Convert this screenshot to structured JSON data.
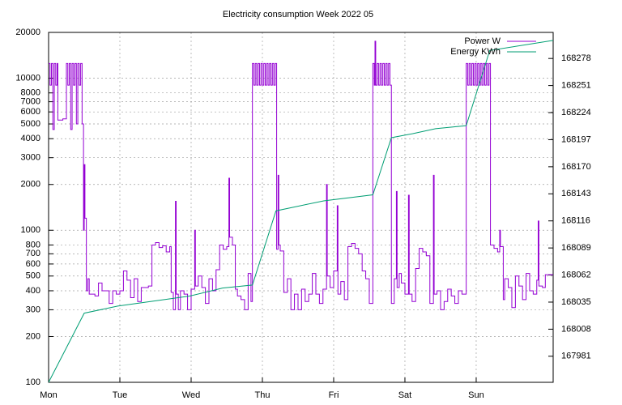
{
  "chart_data": {
    "type": "line",
    "title": "Electricity consumption Week 2022 05",
    "xlim": [
      0,
      7.08
    ],
    "xticks": [
      {
        "value": 0,
        "label": "Mon"
      },
      {
        "value": 1,
        "label": "Tue"
      },
      {
        "value": 2,
        "label": "Wed"
      },
      {
        "value": 3,
        "label": "Thu"
      },
      {
        "value": 4,
        "label": "Fri"
      },
      {
        "value": 5,
        "label": "Sat"
      },
      {
        "value": 6,
        "label": "Sun"
      }
    ],
    "ylim": [
      100,
      20000
    ],
    "log_y": true,
    "yticks": [
      100,
      200,
      300,
      400,
      500,
      600,
      700,
      800,
      1000,
      2000,
      3000,
      4000,
      5000,
      6000,
      7000,
      8000,
      10000,
      20000
    ],
    "y2lim": [
      167955,
      168304
    ],
    "y2ticks": [
      167981,
      168008,
      168035,
      168062,
      168089,
      168116,
      168143,
      168170,
      168197,
      168224,
      168251,
      168278
    ],
    "grid": true,
    "legend": "top-right",
    "series": [
      {
        "name": "Power W",
        "color": "#9400d3",
        "steps": true,
        "x": [
          0,
          0.02,
          0.04,
          0.06,
          0.08,
          0.1,
          0.12,
          0.13,
          0.2,
          0.25,
          0.27,
          0.29,
          0.31,
          0.33,
          0.35,
          0.37,
          0.39,
          0.41,
          0.43,
          0.45,
          0.47,
          0.49,
          0.5,
          0.51,
          0.53,
          0.55,
          0.57,
          0.65,
          0.7,
          0.75,
          0.85,
          0.9,
          0.95,
          1.0,
          1.05,
          1.1,
          1.15,
          1.2,
          1.25,
          1.3,
          1.4,
          1.45,
          1.5,
          1.55,
          1.6,
          1.65,
          1.7,
          1.72,
          1.75,
          1.78,
          1.79,
          1.82,
          1.85,
          1.9,
          1.95,
          2.0,
          2.05,
          2.06,
          2.1,
          2.15,
          2.2,
          2.25,
          2.3,
          2.35,
          2.4,
          2.45,
          2.5,
          2.53,
          2.54,
          2.58,
          2.62,
          2.65,
          2.7,
          2.75,
          2.8,
          2.84,
          2.86,
          2.88,
          2.9,
          2.92,
          2.94,
          2.96,
          2.98,
          3.0,
          3.02,
          3.04,
          3.06,
          3.08,
          3.1,
          3.12,
          3.14,
          3.16,
          3.18,
          3.2,
          3.22,
          3.23,
          3.25,
          3.3,
          3.35,
          3.4,
          3.45,
          3.5,
          3.55,
          3.6,
          3.65,
          3.7,
          3.75,
          3.8,
          3.85,
          3.9,
          3.91,
          3.95,
          4.0,
          4.05,
          4.06,
          4.1,
          4.15,
          4.2,
          4.25,
          4.3,
          4.35,
          4.4,
          4.45,
          4.5,
          4.55,
          4.57,
          4.58,
          4.59,
          4.61,
          4.63,
          4.65,
          4.67,
          4.69,
          4.71,
          4.73,
          4.75,
          4.77,
          4.79,
          4.81,
          4.85,
          4.88,
          4.89,
          4.92,
          4.95,
          5.0,
          5.05,
          5.06,
          5.1,
          5.15,
          5.2,
          5.25,
          5.3,
          5.35,
          5.4,
          5.41,
          5.45,
          5.5,
          5.55,
          5.6,
          5.65,
          5.7,
          5.75,
          5.8,
          5.86,
          5.88,
          5.9,
          5.92,
          5.94,
          5.96,
          5.98,
          6.0,
          6.02,
          6.04,
          6.06,
          6.08,
          6.1,
          6.12,
          6.14,
          6.16,
          6.18,
          6.2,
          6.25,
          6.3,
          6.33,
          6.34,
          6.38,
          6.4,
          6.45,
          6.5,
          6.55,
          6.6,
          6.65,
          6.7,
          6.75,
          6.8,
          6.85,
          6.87,
          6.88,
          6.93,
          6.97
        ],
        "values": [
          12500,
          9000,
          12500,
          4600,
          12500,
          9000,
          12500,
          5300,
          5400,
          12500,
          9000,
          12500,
          4600,
          12500,
          9000,
          12500,
          5000,
          12500,
          9000,
          12500,
          5000,
          1000,
          2700,
          1200,
          400,
          480,
          380,
          370,
          450,
          400,
          330,
          400,
          380,
          400,
          540,
          470,
          360,
          480,
          340,
          420,
          430,
          800,
          830,
          770,
          790,
          720,
          780,
          390,
          300,
          1550,
          380,
          300,
          400,
          380,
          300,
          410,
          1000,
          430,
          500,
          420,
          330,
          480,
          400,
          550,
          800,
          750,
          780,
          2200,
          900,
          800,
          410,
          370,
          350,
          300,
          520,
          340,
          12500,
          9000,
          12500,
          9000,
          12500,
          9000,
          12500,
          9000,
          12500,
          9000,
          12500,
          9000,
          12500,
          9000,
          12500,
          9000,
          12500,
          750,
          2300,
          800,
          730,
          390,
          480,
          300,
          380,
          300,
          410,
          340,
          380,
          520,
          380,
          330,
          410,
          2000,
          500,
          420,
          540,
          1450,
          380,
          460,
          350,
          780,
          820,
          760,
          700,
          540,
          480,
          330,
          12500,
          9000,
          17500,
          9000,
          12500,
          9000,
          12500,
          9000,
          12500,
          9000,
          12500,
          9000,
          12500,
          9000,
          330,
          480,
          1800,
          420,
          520,
          450,
          380,
          1700,
          380,
          340,
          560,
          760,
          720,
          680,
          330,
          2300,
          380,
          400,
          300,
          340,
          410,
          370,
          330,
          400,
          380,
          12500,
          9000,
          12500,
          9000,
          12500,
          9000,
          12500,
          9000,
          12500,
          9000,
          12500,
          9000,
          12500,
          9000,
          12500,
          9000,
          12500,
          800,
          760,
          720,
          1000,
          780,
          350,
          480,
          420,
          310,
          500,
          430,
          350,
          520,
          400,
          380,
          470,
          1150,
          430,
          420,
          510
        ]
      },
      {
        "name": "Energy KWh",
        "color": "#009e73",
        "axis": "y2",
        "x": [
          0,
          0.5,
          0.97,
          1.98,
          2.44,
          2.86,
          3.19,
          3.86,
          4.55,
          4.81,
          5.11,
          5.43,
          5.86,
          6.19,
          7.08
        ],
        "values": [
          167955,
          168024,
          168031,
          168041,
          168049,
          168052,
          168126,
          168136,
          168142,
          168199,
          168203,
          168208,
          168211,
          168286,
          168296
        ]
      }
    ]
  }
}
